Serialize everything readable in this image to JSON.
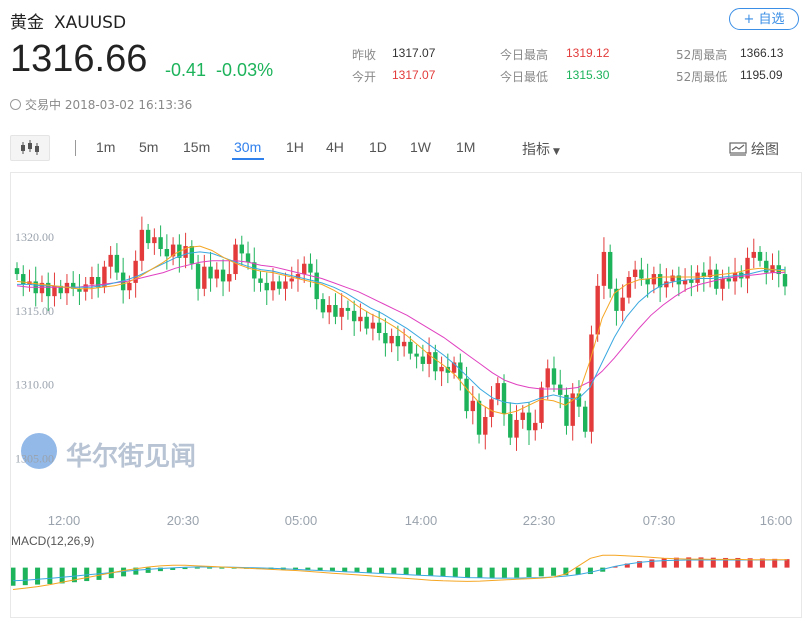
{
  "header": {
    "name": "黄金",
    "symbol": "XAUUSD",
    "follow_label": "+ 自选",
    "price": "1316.66",
    "change": "-0.41",
    "change_pct": "-0.03%",
    "status_text": "交易中 2018-03-02 16:13:36"
  },
  "stats": [
    {
      "label": "昨收",
      "value": "1317.07",
      "color": "#333333"
    },
    {
      "label": "今开",
      "value": "1317.07",
      "color": "#e33b3b"
    },
    {
      "label": "今日最高",
      "value": "1319.12",
      "color": "#e33b3b"
    },
    {
      "label": "今日最低",
      "value": "1315.30",
      "color": "#1db35b"
    },
    {
      "label": "52周最高",
      "value": "1366.13",
      "color": "#333333"
    },
    {
      "label": "52周最低",
      "value": "1195.09",
      "color": "#333333"
    }
  ],
  "toolbar": {
    "periods": [
      "1m",
      "5m",
      "15m",
      "30m",
      "1H",
      "4H",
      "1D",
      "1W",
      "1M"
    ],
    "active": "30m",
    "indicator_label": "指标",
    "draw_label": "绘图"
  },
  "colors": {
    "up": "#e33b3b",
    "down": "#1db35b",
    "accent": "#2f80ed",
    "ma_fast": "#f5a623",
    "ma_mid": "#3aa8e0",
    "ma_slow": "#e040c0"
  },
  "watermark": "华尔街见闻",
  "chart_data": {
    "type": "candlestick",
    "ylim": [
      1304,
      1323
    ],
    "y_ticks": [
      "1320.00",
      "1315.00",
      "1310.00",
      "1305.00"
    ],
    "x_tick_labels": [
      "12:00",
      "20:30",
      "05:00",
      "14:00",
      "22:30",
      "07:30",
      "16:00"
    ],
    "grid": false,
    "close": [
      1317.5,
      1316.8,
      1317.0,
      1316.2,
      1316.9,
      1316.0,
      1316.7,
      1316.2,
      1316.9,
      1316.5,
      1316.3,
      1316.8,
      1317.3,
      1316.6,
      1318.0,
      1318.8,
      1317.6,
      1316.4,
      1316.9,
      1318.4,
      1320.5,
      1319.6,
      1320.0,
      1319.2,
      1318.7,
      1319.5,
      1318.6,
      1319.4,
      1318.2,
      1316.5,
      1318.0,
      1317.2,
      1317.8,
      1317.0,
      1317.5,
      1319.5,
      1318.9,
      1318.3,
      1317.2,
      1316.9,
      1316.4,
      1317.0,
      1316.5,
      1317.0,
      1317.2,
      1317.5,
      1318.2,
      1317.6,
      1315.8,
      1314.9,
      1315.4,
      1314.6,
      1315.2,
      1315.0,
      1314.3,
      1314.6,
      1313.8,
      1314.2,
      1313.5,
      1312.8,
      1313.3,
      1312.6,
      1312.9,
      1312.1,
      1311.9,
      1311.4,
      1312.2,
      1310.9,
      1311.2,
      1310.8,
      1311.5,
      1310.4,
      1308.2,
      1308.9,
      1306.6,
      1307.8,
      1309.0,
      1310.1,
      1308.0,
      1306.4,
      1307.6,
      1308.1,
      1306.9,
      1307.4,
      1309.8,
      1311.1,
      1310.0,
      1309.3,
      1307.2,
      1309.4,
      1308.5,
      1306.8,
      1313.4,
      1316.7,
      1319.0,
      1316.5,
      1315.0,
      1315.9,
      1317.3,
      1317.8,
      1317.2,
      1316.8,
      1317.5,
      1316.6,
      1317.0,
      1317.4,
      1316.8,
      1317.1,
      1316.9,
      1317.6,
      1317.3,
      1317.8,
      1316.5,
      1317.2,
      1317.0,
      1317.6,
      1317.2,
      1318.6,
      1319.0,
      1318.4,
      1317.6,
      1318.1,
      1317.5,
      1316.66
    ],
    "ma_fast": [
      1317.0,
      1316.9,
      1316.8,
      1316.7,
      1316.6,
      1316.5,
      1316.5,
      1316.6,
      1316.7,
      1316.9,
      1317.3,
      1317.8,
      1318.3,
      1318.9,
      1319.3,
      1319.4,
      1319.1,
      1318.6,
      1318.2,
      1317.9,
      1317.7,
      1317.6,
      1317.4,
      1317.2,
      1317.0,
      1316.8,
      1316.4,
      1315.9,
      1315.3,
      1314.8,
      1314.4,
      1313.9,
      1313.3,
      1312.6,
      1311.9,
      1311.3,
      1310.6,
      1309.6,
      1308.7,
      1308.2,
      1308.0,
      1308.2,
      1308.6,
      1309.0,
      1308.9,
      1308.6,
      1309.2,
      1311.6,
      1314.5,
      1316.2,
      1316.8,
      1317.1,
      1317.2,
      1317.3,
      1317.3,
      1317.3,
      1317.3,
      1317.4,
      1317.5,
      1317.6,
      1317.8,
      1317.9,
      1317.8,
      1317.7
    ],
    "ma_mid": [
      1316.8,
      1316.8,
      1316.7,
      1316.7,
      1316.6,
      1316.6,
      1316.6,
      1316.7,
      1316.9,
      1317.1,
      1317.4,
      1317.8,
      1318.2,
      1318.6,
      1318.9,
      1319.0,
      1318.9,
      1318.6,
      1318.3,
      1318.0,
      1317.8,
      1317.7,
      1317.5,
      1317.3,
      1317.1,
      1316.9,
      1316.6,
      1316.2,
      1315.7,
      1315.2,
      1314.8,
      1314.3,
      1313.8,
      1313.2,
      1312.6,
      1312.0,
      1311.3,
      1310.5,
      1309.7,
      1309.1,
      1308.8,
      1308.7,
      1308.8,
      1309.1,
      1309.3,
      1309.1,
      1309.0,
      1309.8,
      1311.5,
      1313.2,
      1314.6,
      1315.6,
      1316.3,
      1316.8,
      1317.0,
      1317.1,
      1317.2,
      1317.2,
      1317.3,
      1317.4,
      1317.5,
      1317.7,
      1317.8,
      1317.8
    ],
    "ma_slow": [
      1316.7,
      1316.6,
      1316.6,
      1316.6,
      1316.6,
      1316.6,
      1316.7,
      1316.8,
      1316.9,
      1317.0,
      1317.2,
      1317.4,
      1317.6,
      1317.9,
      1318.1,
      1318.3,
      1318.4,
      1318.4,
      1318.4,
      1318.3,
      1318.1,
      1318.0,
      1317.8,
      1317.6,
      1317.4,
      1317.2,
      1316.9,
      1316.6,
      1316.3,
      1315.9,
      1315.5,
      1315.1,
      1314.7,
      1314.2,
      1313.7,
      1313.2,
      1312.6,
      1312.0,
      1311.4,
      1310.8,
      1310.3,
      1310.0,
      1309.8,
      1309.7,
      1309.7,
      1309.7,
      1309.8,
      1310.2,
      1310.9,
      1311.8,
      1312.8,
      1313.8,
      1314.7,
      1315.4,
      1316.0,
      1316.5,
      1316.8,
      1317.0,
      1317.2,
      1317.3,
      1317.4,
      1317.5,
      1317.6,
      1317.6
    ],
    "macd": {
      "label": "MACD(12,26,9)",
      "hist": [
        -6.2,
        -6.0,
        -5.8,
        -5.6,
        -5.4,
        -5.0,
        -4.6,
        -4.2,
        -3.6,
        -3.0,
        -2.4,
        -1.8,
        -1.2,
        -0.8,
        -0.5,
        -0.3,
        -0.2,
        -0.2,
        -0.3,
        -0.4,
        -0.5,
        -0.6,
        -0.7,
        -0.8,
        -0.9,
        -1.0,
        -1.2,
        -1.4,
        -1.6,
        -1.8,
        -2.0,
        -2.2,
        -2.4,
        -2.6,
        -2.8,
        -3.0,
        -3.2,
        -3.4,
        -3.5,
        -3.6,
        -3.5,
        -3.4,
        -3.2,
        -3.0,
        -2.8,
        -2.6,
        -2.4,
        -2.2,
        -1.4,
        0.4,
        1.4,
        2.2,
        2.8,
        3.2,
        3.4,
        3.5,
        3.5,
        3.4,
        3.3,
        3.3,
        3.2,
        3.1,
        3.0,
        2.9
      ],
      "dif": [
        -7.5,
        -7.0,
        -6.5,
        -5.8,
        -5.0,
        -4.2,
        -3.4,
        -2.6,
        -1.8,
        -1.0,
        -0.4,
        0.2,
        0.6,
        0.8,
        0.8,
        0.6,
        0.4,
        0.2,
        0.0,
        -0.2,
        -0.4,
        -0.6,
        -0.8,
        -1.0,
        -1.3,
        -1.6,
        -1.9,
        -2.2,
        -2.5,
        -2.8,
        -3.1,
        -3.4,
        -3.7,
        -4.0,
        -4.3,
        -4.5,
        -4.6,
        -4.7,
        -4.6,
        -4.4,
        -4.2,
        -4.0,
        -3.8,
        -3.6,
        -3.2,
        -2.2,
        0.5,
        3.2,
        4.2,
        4.2,
        4.0,
        3.8,
        3.5,
        3.2,
        3.0,
        2.9,
        2.9,
        2.8,
        2.8,
        2.8,
        2.7,
        2.7,
        2.7,
        2.7
      ],
      "dea": [
        -4.5,
        -4.3,
        -4.0,
        -3.7,
        -3.3,
        -2.9,
        -2.5,
        -2.1,
        -1.7,
        -1.3,
        -0.9,
        -0.6,
        -0.3,
        -0.1,
        0.1,
        0.2,
        0.2,
        0.2,
        0.1,
        0.0,
        -0.1,
        -0.2,
        -0.4,
        -0.6,
        -0.8,
        -1.0,
        -1.2,
        -1.4,
        -1.6,
        -1.8,
        -2.0,
        -2.2,
        -2.4,
        -2.6,
        -2.8,
        -3.0,
        -3.2,
        -3.4,
        -3.5,
        -3.6,
        -3.6,
        -3.6,
        -3.5,
        -3.4,
        -3.2,
        -2.9,
        -2.4,
        -1.6,
        -0.6,
        0.4,
        1.2,
        1.8,
        2.2,
        2.4,
        2.5,
        2.6,
        2.6,
        2.6,
        2.6,
        2.6,
        2.6,
        2.6,
        2.6,
        2.6
      ]
    }
  }
}
